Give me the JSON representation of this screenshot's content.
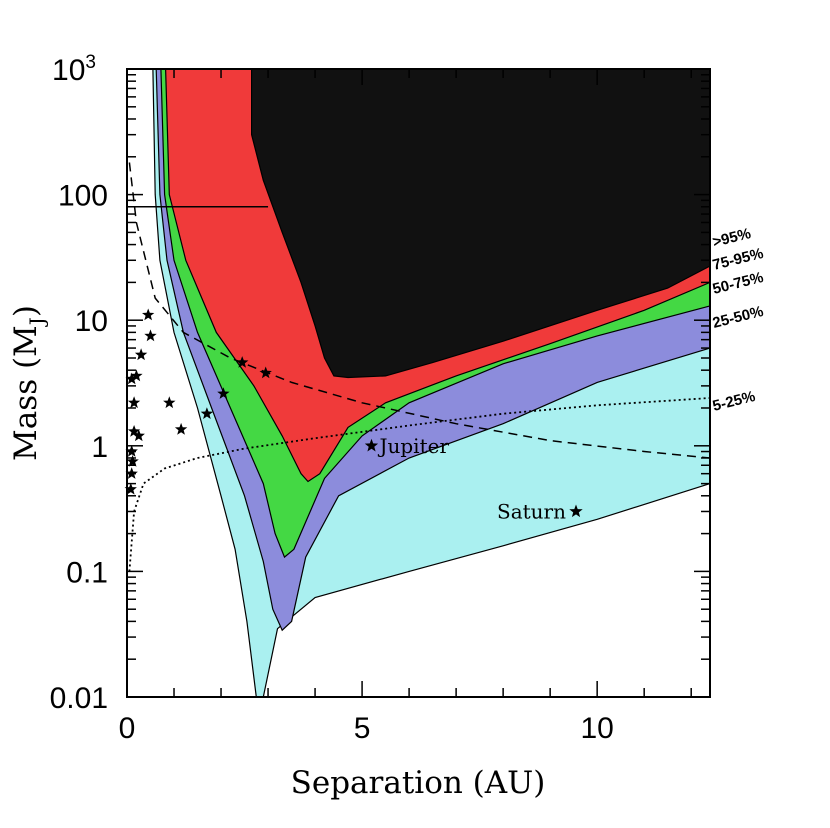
{
  "chart_data": {
    "type": "contour",
    "title": "",
    "xlabel": "Separation (AU)",
    "ylabel_main": "Mass (M",
    "ylabel_sub": "J",
    "ylabel_end": ")",
    "xscale": "linear",
    "yscale": "log",
    "xlim": [
      0,
      12.4
    ],
    "ylim": [
      0.01,
      1000
    ],
    "x_ticks": [
      {
        "value": 0,
        "label": "0"
      },
      {
        "value": 5,
        "label": "5"
      },
      {
        "value": 10,
        "label": "10"
      }
    ],
    "y_ticks": [
      {
        "value": 0.01,
        "label": "0.01"
      },
      {
        "value": 0.1,
        "label": "0.1"
      },
      {
        "value": 1,
        "label": "1"
      },
      {
        "value": 10,
        "label": "10"
      },
      {
        "value": 100,
        "label": "100"
      },
      {
        "value": 1000,
        "label": "10",
        "exp": "3"
      }
    ],
    "regions": [
      {
        "name": "5-25%",
        "label": "5-25%",
        "color": "#aaf0f0",
        "left": [
          [
            0.55,
            1000
          ],
          [
            0.6,
            100
          ],
          [
            0.7,
            30
          ],
          [
            1.0,
            8
          ],
          [
            1.5,
            2
          ],
          [
            2.0,
            0.4
          ],
          [
            2.3,
            0.15
          ],
          [
            2.55,
            0.04
          ],
          [
            2.75,
            0.01
          ]
        ],
        "right": [
          [
            2.9,
            0.01
          ],
          [
            3.2,
            0.035
          ],
          [
            4,
            0.062
          ],
          [
            6,
            0.1
          ],
          [
            8,
            0.16
          ],
          [
            10,
            0.26
          ],
          [
            12.4,
            0.5
          ]
        ]
      },
      {
        "name": "25-50%",
        "label": "25-50%",
        "color": "#8c8cdc",
        "left": [
          [
            0.62,
            1000
          ],
          [
            0.7,
            100
          ],
          [
            0.85,
            30
          ],
          [
            1.2,
            8
          ],
          [
            1.8,
            2
          ],
          [
            2.5,
            0.4
          ],
          [
            2.9,
            0.12
          ],
          [
            3.1,
            0.05
          ],
          [
            3.3,
            0.034
          ]
        ],
        "right": [
          [
            3.5,
            0.04
          ],
          [
            3.8,
            0.13
          ],
          [
            4.5,
            0.4
          ],
          [
            6,
            0.8
          ],
          [
            8,
            1.5
          ],
          [
            10,
            3.2
          ],
          [
            12.4,
            6
          ]
        ]
      },
      {
        "name": "50-75%",
        "label": "50-75%",
        "color": "#44d844",
        "left": [
          [
            0.72,
            1000
          ],
          [
            0.8,
            100
          ],
          [
            1.0,
            30
          ],
          [
            1.5,
            8
          ],
          [
            2.2,
            2
          ],
          [
            2.9,
            0.5
          ],
          [
            3.15,
            0.2
          ],
          [
            3.35,
            0.13
          ]
        ],
        "right": [
          [
            3.55,
            0.15
          ],
          [
            4.2,
            0.55
          ],
          [
            5,
            1.2
          ],
          [
            6,
            2.2
          ],
          [
            8,
            4.5
          ],
          [
            10,
            7.5
          ],
          [
            12.4,
            13
          ]
        ]
      },
      {
        "name": "75-95%",
        "label": "75-95%",
        "color": "#f03a3a",
        "left": [
          [
            0.82,
            1000
          ],
          [
            0.9,
            100
          ],
          [
            1.25,
            30
          ],
          [
            1.9,
            8
          ],
          [
            2.7,
            3
          ],
          [
            3.3,
            1.2
          ],
          [
            3.7,
            0.6
          ],
          [
            3.85,
            0.52
          ]
        ],
        "right": [
          [
            4.1,
            0.6
          ],
          [
            4.7,
            1.4
          ],
          [
            5.5,
            2.2
          ],
          [
            7,
            3.6
          ],
          [
            9,
            6.5
          ],
          [
            11,
            12
          ],
          [
            12.4,
            20
          ]
        ]
      },
      {
        "name": ">95%",
        "label": ">95%",
        "color": "#111111",
        "left": [
          [
            2.65,
            1000
          ],
          [
            2.65,
            300
          ],
          [
            2.9,
            130
          ],
          [
            3.3,
            50
          ],
          [
            3.7,
            20
          ],
          [
            4.0,
            9
          ],
          [
            4.2,
            5
          ],
          [
            4.4,
            3.6
          ],
          [
            4.7,
            3.5
          ]
        ],
        "right": [
          [
            5.5,
            3.6
          ],
          [
            6.5,
            4.6
          ],
          [
            8,
            6.8
          ],
          [
            10,
            12
          ],
          [
            11.5,
            18
          ],
          [
            12.4,
            27
          ]
        ]
      }
    ],
    "horizontal_line": {
      "value": 80
    },
    "dashed_curve": [
      [
        0.05,
        180
      ],
      [
        0.2,
        60
      ],
      [
        0.6,
        15
      ],
      [
        1.2,
        8
      ],
      [
        2.2,
        5
      ],
      [
        3.5,
        3.2
      ],
      [
        5,
        2.2
      ],
      [
        7,
        1.5
      ],
      [
        9,
        1.1
      ],
      [
        11,
        0.9
      ],
      [
        12.4,
        0.8
      ]
    ],
    "dotted_curve": [
      [
        0.05,
        0.1
      ],
      [
        0.15,
        0.3
      ],
      [
        0.35,
        0.5
      ],
      [
        0.8,
        0.66
      ],
      [
        1.5,
        0.8
      ],
      [
        2.5,
        0.95
      ],
      [
        4,
        1.15
      ],
      [
        6,
        1.45
      ],
      [
        8,
        1.8
      ],
      [
        10,
        2.1
      ],
      [
        12.4,
        2.4
      ]
    ],
    "star_points": [
      {
        "x": 0.08,
        "y": 0.45
      },
      {
        "x": 0.1,
        "y": 0.6
      },
      {
        "x": 0.12,
        "y": 0.75
      },
      {
        "x": 0.1,
        "y": 0.9
      },
      {
        "x": 0.15,
        "y": 1.3
      },
      {
        "x": 0.25,
        "y": 1.2
      },
      {
        "x": 0.15,
        "y": 2.2
      },
      {
        "x": 0.1,
        "y": 3.4
      },
      {
        "x": 0.2,
        "y": 3.6
      },
      {
        "x": 0.3,
        "y": 5.3
      },
      {
        "x": 0.5,
        "y": 7.5
      },
      {
        "x": 0.45,
        "y": 11
      },
      {
        "x": 0.9,
        "y": 2.2
      },
      {
        "x": 1.15,
        "y": 1.35
      },
      {
        "x": 1.7,
        "y": 1.8
      },
      {
        "x": 2.05,
        "y": 2.6
      },
      {
        "x": 2.45,
        "y": 4.6
      },
      {
        "x": 2.95,
        "y": 3.8
      }
    ],
    "planets": [
      {
        "name": "Jupiter",
        "label": "Jupiter",
        "x": 5.2,
        "y": 1.0
      },
      {
        "name": "Saturn",
        "label": "Saturn",
        "x": 9.55,
        "y": 0.3
      }
    ]
  }
}
